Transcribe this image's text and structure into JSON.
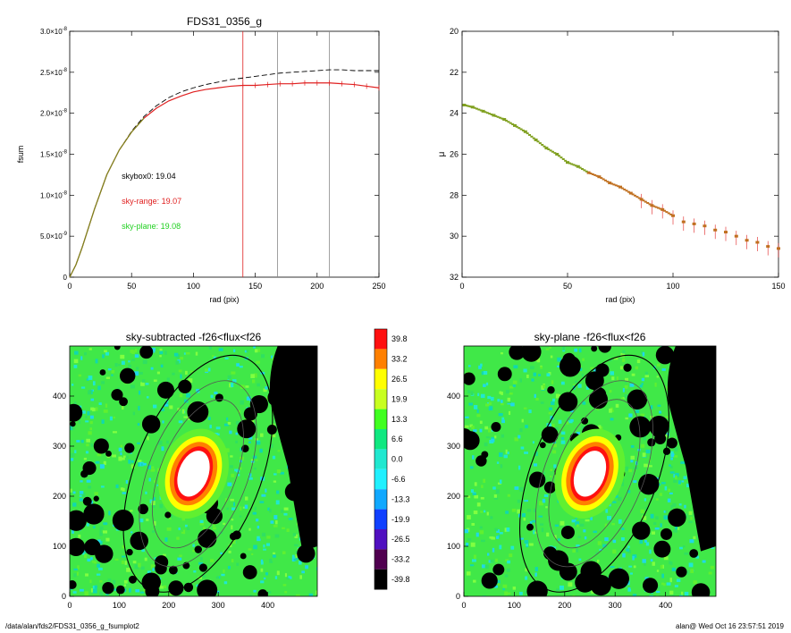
{
  "chart_data": [
    {
      "type": "line",
      "title": "FDS31_0356_g",
      "xlabel": "rad (pix)",
      "ylabel": "fsum",
      "xlim": [
        0,
        250
      ],
      "ylim": [
        0,
        3e-08
      ],
      "xticks": [
        "0",
        "50",
        "100",
        "150",
        "200",
        "250"
      ],
      "yticks": [
        {
          "base": "0",
          "exp": ""
        },
        {
          "base": "5.0×10",
          "exp": "-9"
        },
        {
          "base": "1.0×10",
          "exp": "-8"
        },
        {
          "base": "1.5×10",
          "exp": "-8"
        },
        {
          "base": "2.0×10",
          "exp": "-8"
        },
        {
          "base": "2.5×10",
          "exp": "-8"
        },
        {
          "base": "3.0×10",
          "exp": "-8"
        }
      ],
      "vlines": [
        140,
        168,
        210
      ],
      "annotations": [
        {
          "text": "skybox0: 19.04",
          "color": "#000000"
        },
        {
          "text": "sky-range: 19.07",
          "color": "#e02020"
        },
        {
          "text": "sky-plane: 19.08",
          "color": "#20d020"
        }
      ],
      "series": [
        {
          "line": "dashed",
          "color": "#000000",
          "x": [
            0,
            5,
            10,
            20,
            30,
            40,
            50,
            60,
            70,
            80,
            90,
            100,
            110,
            120,
            130,
            140,
            150,
            160,
            170,
            180,
            190,
            200,
            210,
            220,
            230,
            240,
            250
          ],
          "y": [
            0,
            1.5e-09,
            3.6e-09,
            8.3e-09,
            1.25e-08,
            1.55e-08,
            1.78e-08,
            1.96e-08,
            2.09e-08,
            2.19e-08,
            2.26e-08,
            2.31e-08,
            2.35e-08,
            2.38e-08,
            2.41e-08,
            2.43e-08,
            2.45e-08,
            2.47e-08,
            2.49e-08,
            2.5e-08,
            2.51e-08,
            2.52e-08,
            2.53e-08,
            2.53e-08,
            2.52e-08,
            2.52e-08,
            2.52e-08
          ]
        },
        {
          "line": "solid",
          "color": "#e02020",
          "x": [
            0,
            5,
            10,
            20,
            30,
            40,
            50,
            60,
            70,
            80,
            90,
            100,
            110,
            120,
            130,
            140,
            150,
            160,
            170,
            180,
            190,
            200,
            210,
            220,
            230,
            240,
            250
          ],
          "y": [
            0,
            1.5e-09,
            3.6e-09,
            8.3e-09,
            1.25e-08,
            1.55e-08,
            1.77e-08,
            1.94e-08,
            2.06e-08,
            2.15e-08,
            2.21e-08,
            2.26e-08,
            2.29e-08,
            2.31e-08,
            2.33e-08,
            2.34e-08,
            2.34e-08,
            2.35e-08,
            2.36e-08,
            2.36e-08,
            2.37e-08,
            2.37e-08,
            2.37e-08,
            2.36e-08,
            2.35e-08,
            2.33e-08,
            2.31e-08
          ]
        }
      ]
    },
    {
      "type": "scatter",
      "title": "",
      "xlabel": "rad (pix)",
      "ylabel": "μ",
      "xlim": [
        0,
        150
      ],
      "ylim": [
        32,
        20
      ],
      "xticks": [
        "0",
        "50",
        "100",
        "150"
      ],
      "yticks": [
        "20",
        "22",
        "24",
        "26",
        "28",
        "30",
        "32"
      ],
      "series": [
        {
          "marker": "square",
          "color": "#c07020",
          "x": [
            1,
            5,
            10,
            15,
            20,
            25,
            30,
            35,
            40,
            45,
            50,
            55,
            60,
            65,
            70,
            75,
            80,
            85,
            90,
            95,
            100,
            105,
            110,
            115,
            120,
            125,
            130,
            135,
            140,
            145,
            150
          ],
          "y": [
            23.6,
            23.7,
            23.9,
            24.1,
            24.3,
            24.6,
            24.9,
            25.3,
            25.7,
            26.0,
            26.4,
            26.6,
            26.9,
            27.1,
            27.4,
            27.6,
            27.9,
            28.2,
            28.5,
            28.7,
            29.0,
            29.3,
            29.4,
            29.5,
            29.7,
            29.8,
            30.0,
            30.2,
            30.3,
            30.5,
            30.6
          ]
        }
      ]
    },
    {
      "type": "heatmap",
      "title": "sky-subtracted -f26<flux<f26",
      "xlim": [
        0,
        500
      ],
      "ylim": [
        0,
        500
      ],
      "xticks": [
        "0",
        "100",
        "200",
        "300",
        "400"
      ],
      "yticks": [
        "0",
        "100",
        "200",
        "300",
        "400"
      ]
    },
    {
      "type": "heatmap",
      "title": "sky-plane -f26<flux<f26",
      "xlim": [
        0,
        500
      ],
      "ylim": [
        0,
        500
      ],
      "xticks": [
        "0",
        "100",
        "200",
        "300",
        "400"
      ],
      "yticks": [
        "0",
        "100",
        "200",
        "300",
        "400"
      ]
    }
  ],
  "colorbar": {
    "labels": [
      "39.8",
      "33.2",
      "26.5",
      "19.9",
      "13.3",
      "6.6",
      "0.0",
      "-6.6",
      "-13.3",
      "-19.9",
      "-26.5",
      "-33.2",
      "-39.8"
    ],
    "colors": [
      "#ff1010",
      "#ff8000",
      "#ffff00",
      "#c8ff20",
      "#40ff20",
      "#10e880",
      "#20e8d0",
      "#20f0ff",
      "#10a8ff",
      "#1040ff",
      "#5010c0",
      "#500050",
      "#000000"
    ]
  },
  "footer": {
    "path": "/data/alan/fds2/FDS31_0356_g_fsumplot2",
    "user_date": "alan@  Wed Oct 16 23:57:51 2019"
  }
}
